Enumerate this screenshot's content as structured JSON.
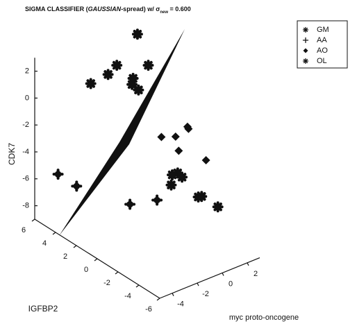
{
  "chart_data": {
    "type": "scatter3d",
    "title_parts": [
      "SIGMA CLASSIFIER (",
      "GAUSSIAN",
      "-spread) w/ σ",
      "new",
      " = 0.600"
    ],
    "xlabel": "myc proto-oncogene",
    "ylabel": "IGFBP2",
    "zlabel": "CDK7",
    "xlim": [
      -5,
      3
    ],
    "xticks": [
      -4,
      -2,
      0,
      2
    ],
    "ylim": [
      -6,
      6
    ],
    "yticks": [
      -6,
      -4,
      -2,
      0,
      2,
      4,
      6
    ],
    "zlim": [
      -9,
      3
    ],
    "zticks": [
      -8,
      -6,
      -4,
      -2,
      0,
      2
    ],
    "legend": "upper right",
    "series": [
      {
        "name": "GM",
        "color": "#111111",
        "marker": "asterisk",
        "x": [
          -1.7,
          -2.1,
          -2.3,
          -1.5,
          -2.6,
          -1.8,
          -1.8,
          -1.7
        ],
        "y": [
          0.1,
          1.6,
          2.2,
          -0.7,
          3.5,
          0.4,
          0.5,
          0.0
        ],
        "z": [
          6.4,
          3.5,
          2.6,
          4.4,
          1.4,
          3.0,
          2.5,
          2.3
        ]
      },
      {
        "name": "AA",
        "color": "#111111",
        "marker": "plus",
        "x": [
          -3.3,
          -2.9,
          -1.3,
          -1.8
        ],
        "y": [
          5.8,
          4.5,
          -1.3,
          0.7
        ],
        "z": [
          -6.2,
          -6.6,
          -5.4,
          -6.5
        ]
      },
      {
        "name": "AO",
        "color": "#111111",
        "marker": "diamond",
        "x": [
          -1.2,
          -0.9,
          -0.7,
          -0.7,
          -0.9,
          -0.3
        ],
        "y": [
          -1.6,
          -2.6,
          -3.5,
          -3.6,
          -2.9,
          -4.8
        ],
        "z": [
          -0.6,
          -0.2,
          0.9,
          0.8,
          -1.1,
          -1.1
        ]
      },
      {
        "name": "OL",
        "color": "#111111",
        "marker": "asterisk",
        "x": [
          -0.9,
          -0.8,
          -1.0,
          -1.0,
          -0.5,
          -0.4,
          -0.1
        ],
        "y": [
          -2.8,
          -3.1,
          -2.4,
          -2.3,
          -4.3,
          -4.5,
          -5.7
        ],
        "z": [
          -2.8,
          -3.0,
          -3.1,
          -3.9,
          -4.0,
          -3.9,
          -4.2
        ]
      }
    ]
  }
}
